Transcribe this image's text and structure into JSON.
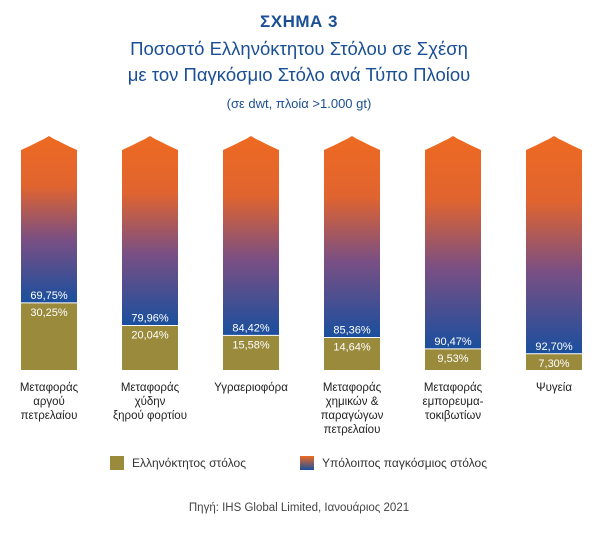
{
  "figure": {
    "label": "ΣΧΗΜΑ 3"
  },
  "source": "Πηγή: IHS Global Limited, Ιανουάριος 2021",
  "colors": {
    "greek": "#9a8a3c",
    "world_top": "#ee6a22",
    "world_bottom": "#1a4f9e",
    "title": "#1a4f96"
  },
  "chart_data": {
    "type": "bar",
    "stacked": true,
    "title_lines": [
      "Ποσοστό Ελληνόκτητου Στόλου σε Σχέση",
      "με τον Παγκόσμιο Στόλο ανά Τύπο Πλοίου"
    ],
    "subtitle": "(σε dwt, πλοία >1.000 gt)",
    "ylim": [
      0,
      100
    ],
    "categories": [
      [
        "Μεταφοράς",
        "αργού",
        "πετρελαίου"
      ],
      [
        "Μεταφοράς",
        "χύδην",
        "ξηρού φορτίου"
      ],
      [
        "Υγραεριοφόρα"
      ],
      [
        "Μεταφοράς",
        "χημικών &",
        "παραγώγων",
        "πετρελαίου"
      ],
      [
        "Μεταφοράς",
        "εμπορευμα-",
        "τοκιβωτίων"
      ],
      [
        "Ψυγεία"
      ]
    ],
    "series": [
      {
        "name": "Ελληνόκτητος στόλος",
        "values": [
          30.25,
          20.04,
          15.58,
          14.64,
          9.53,
          7.3
        ],
        "labels": [
          "30,25%",
          "20,04%",
          "15,58%",
          "14,64%",
          "9,53%",
          "7,30%"
        ]
      },
      {
        "name": "Υπόλοιπος παγκόσμιος στόλος",
        "values": [
          69.75,
          79.96,
          84.42,
          85.36,
          90.47,
          92.7
        ],
        "labels": [
          "69,75%",
          "79,96%",
          "84,42%",
          "85,36%",
          "90,47%",
          "92,70%"
        ]
      }
    ],
    "grid": false,
    "legend_position": "bottom"
  }
}
